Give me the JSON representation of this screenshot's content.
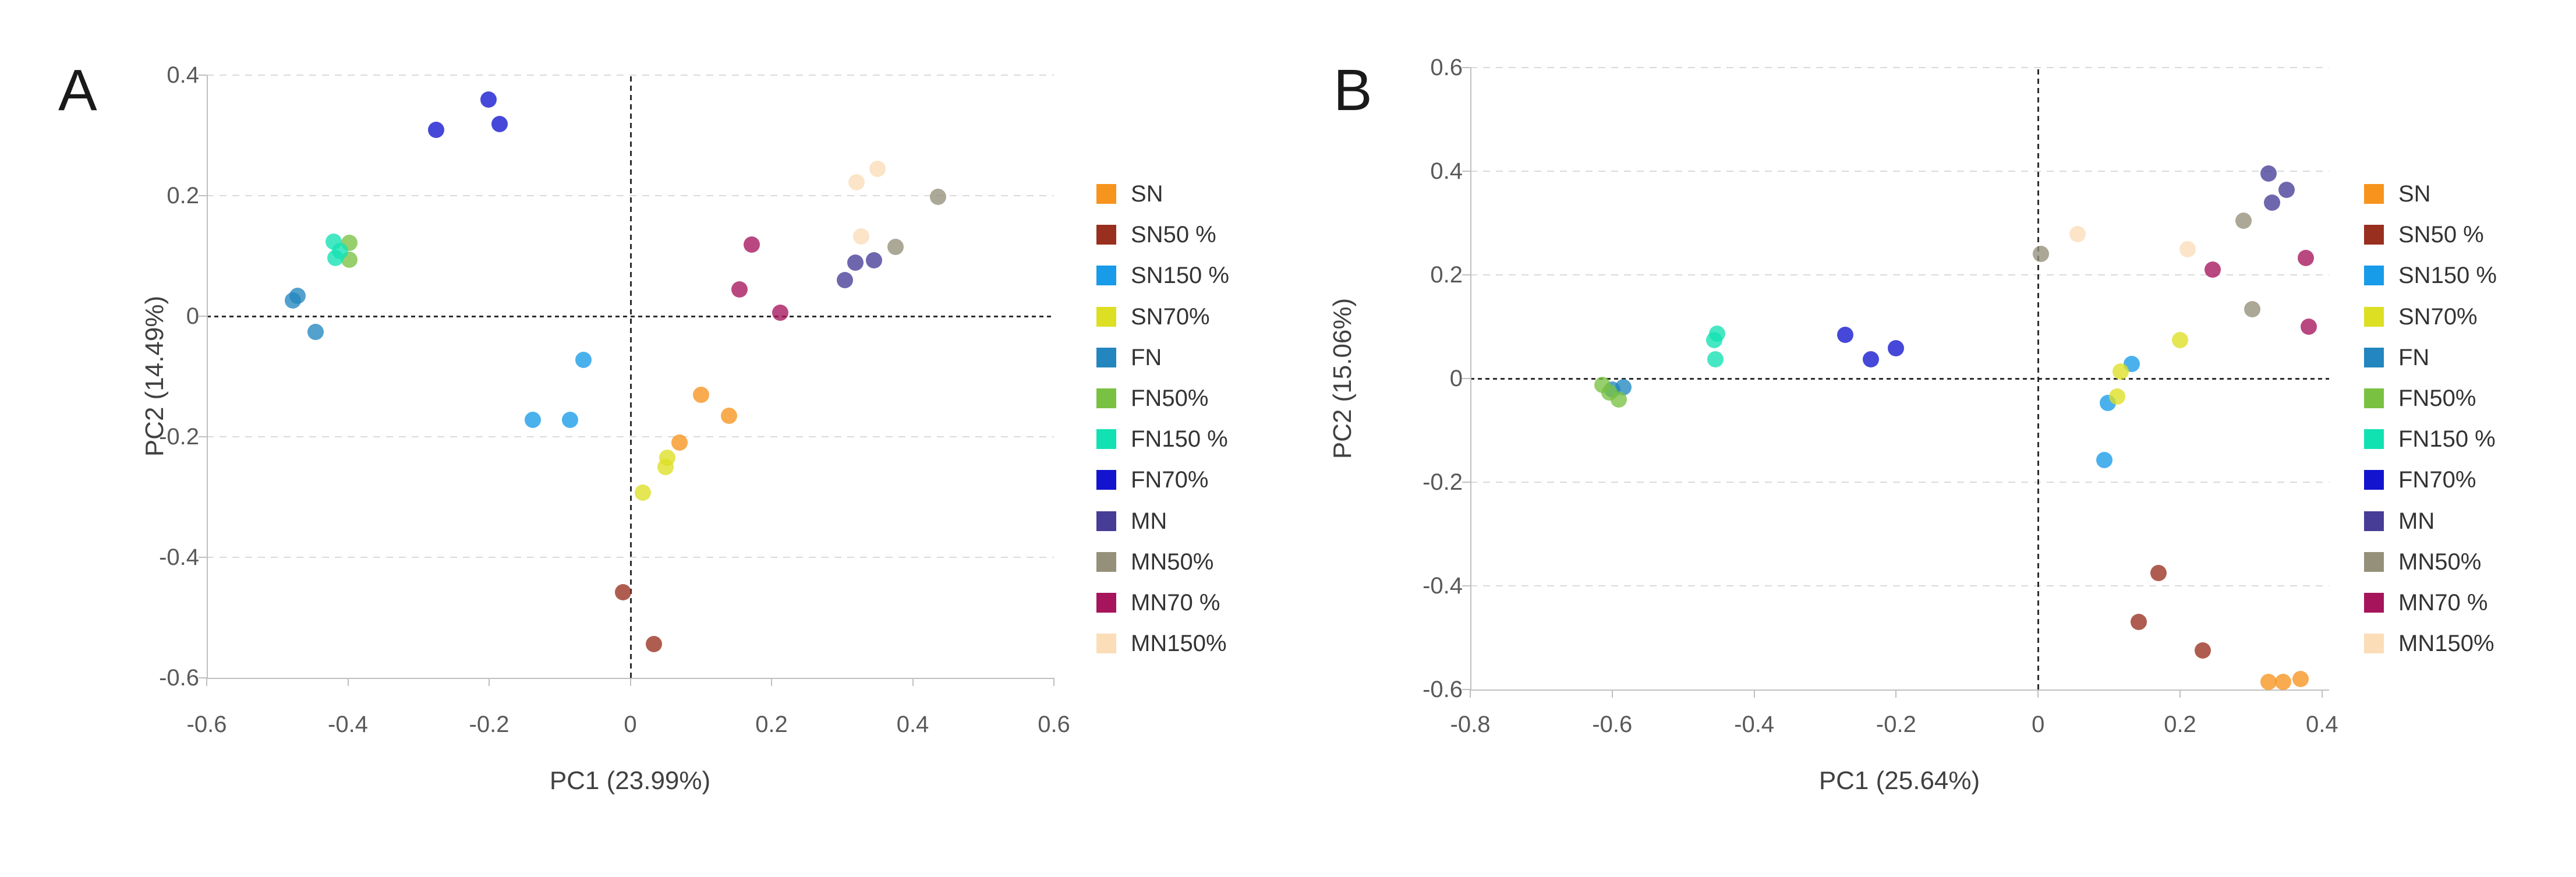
{
  "figure": {
    "panel_a_letter": "A",
    "panel_b_letter": "B"
  },
  "chart_data": [
    {
      "type": "scatter",
      "panel_label": "A",
      "xlabel": "PC1 (23.99%)",
      "ylabel": "PC2 (14.49%)",
      "xlim": [
        -0.6,
        0.6
      ],
      "ylim": [
        -0.6,
        0.4
      ],
      "x_ticks": [
        -0.6,
        -0.4,
        -0.2,
        0,
        0.2,
        0.4,
        0.6
      ],
      "x_tick_labels": [
        "-0.6",
        "-0.4",
        "-0.2",
        "0",
        "0.2",
        "0.4",
        "0.6"
      ],
      "y_ticks": [
        0.4,
        0.2,
        0,
        -0.2,
        -0.4,
        -0.6
      ],
      "y_tick_labels": [
        "0.4",
        "0.2",
        "0",
        "-0.2",
        "-0.4",
        "-0.6"
      ],
      "grid": "horizontal-dashed",
      "legend_position": "right",
      "series": [
        {
          "name": "SN",
          "color": "#F7941D",
          "points": [
            [
              0.1,
              -0.13
            ],
            [
              0.14,
              -0.165
            ],
            [
              0.07,
              -0.21
            ]
          ]
        },
        {
          "name": "SN50 %",
          "color": "#992F1F",
          "points": [
            [
              -0.01,
              -0.458
            ],
            [
              0.033,
              -0.544
            ]
          ]
        },
        {
          "name": "SN150 %",
          "color": "#189BE8",
          "points": [
            [
              -0.066,
              -0.072
            ],
            [
              -0.138,
              -0.172
            ],
            [
              -0.085,
              -0.172
            ]
          ]
        },
        {
          "name": "SN70%",
          "color": "#DCDF23",
          "points": [
            [
              0.052,
              -0.235
            ],
            [
              0.05,
              -0.25
            ],
            [
              0.018,
              -0.293
            ]
          ]
        },
        {
          "name": "FN",
          "color": "#2386BF",
          "points": [
            [
              -0.471,
              0.034
            ],
            [
              -0.478,
              0.026
            ],
            [
              -0.446,
              -0.026
            ]
          ]
        },
        {
          "name": "FN50%",
          "color": "#79C143",
          "points": [
            [
              -0.398,
              0.122
            ],
            [
              -0.398,
              0.094
            ]
          ]
        },
        {
          "name": "FN150 %",
          "color": "#12E1B2",
          "points": [
            [
              -0.42,
              0.124
            ],
            [
              -0.411,
              0.108
            ],
            [
              -0.418,
              0.097
            ]
          ]
        },
        {
          "name": "FN70%",
          "color": "#1214CE",
          "points": [
            [
              -0.275,
              0.309
            ],
            [
              -0.201,
              0.359
            ],
            [
              -0.185,
              0.319
            ]
          ]
        },
        {
          "name": "MN",
          "color": "#473C96",
          "points": [
            [
              0.304,
              0.06
            ],
            [
              0.319,
              0.089
            ],
            [
              0.345,
              0.093
            ]
          ]
        },
        {
          "name": "MN50%",
          "color": "#95907A",
          "points": [
            [
              0.376,
              0.115
            ],
            [
              0.436,
              0.198
            ]
          ]
        },
        {
          "name": "MN70 %",
          "color": "#A6145C",
          "points": [
            [
              0.172,
              0.119
            ],
            [
              0.155,
              0.044
            ],
            [
              0.212,
              0.006
            ]
          ]
        },
        {
          "name": "MN150%",
          "color": "#FBDDB8",
          "points": [
            [
              0.327,
              0.132
            ],
            [
              0.32,
              0.222
            ],
            [
              0.35,
              0.244
            ]
          ]
        }
      ]
    },
    {
      "type": "scatter",
      "panel_label": "B",
      "xlabel": "PC1 (25.64%)",
      "ylabel": "PC2 (15.06%)",
      "xlim": [
        -0.8,
        0.41
      ],
      "ylim": [
        -0.6,
        0.6
      ],
      "x_ticks": [
        -0.8,
        -0.6,
        -0.4,
        -0.2,
        0,
        0.2,
        0.4
      ],
      "x_tick_labels": [
        "-0.8",
        "-0.6",
        "-0.4",
        "-0.2",
        "0",
        "0.2",
        "0.4"
      ],
      "y_ticks": [
        0.6,
        0.4,
        0.2,
        0,
        -0.2,
        -0.4,
        -0.6
      ],
      "y_tick_labels": [
        "0.6",
        "0.4",
        "0.2",
        "0",
        "-0.2",
        "-0.4",
        "-0.6"
      ],
      "grid": "horizontal-dashed",
      "legend_position": "right",
      "series": [
        {
          "name": "SN",
          "color": "#F7941D",
          "points": [
            [
              0.325,
              -0.585
            ],
            [
              0.345,
              -0.585
            ],
            [
              0.37,
              -0.58
            ]
          ]
        },
        {
          "name": "SN50 %",
          "color": "#992F1F",
          "points": [
            [
              0.17,
              -0.375
            ],
            [
              0.142,
              -0.47
            ],
            [
              0.232,
              -0.525
            ]
          ]
        },
        {
          "name": "SN150 %",
          "color": "#189BE8",
          "points": [
            [
              0.132,
              0.028
            ],
            [
              0.098,
              -0.047
            ],
            [
              0.093,
              -0.157
            ]
          ]
        },
        {
          "name": "SN70%",
          "color": "#DCDF23",
          "points": [
            [
              0.2,
              0.074
            ],
            [
              0.116,
              0.013
            ],
            [
              0.111,
              -0.035
            ]
          ]
        },
        {
          "name": "FN",
          "color": "#2386BF",
          "points": [
            [
              -0.584,
              -0.017
            ],
            [
              -0.6,
              -0.021
            ]
          ]
        },
        {
          "name": "FN50%",
          "color": "#79C143",
          "points": [
            [
              -0.614,
              -0.012
            ],
            [
              -0.604,
              -0.027
            ],
            [
              -0.591,
              -0.04
            ]
          ]
        },
        {
          "name": "FN150 %",
          "color": "#12E1B2",
          "points": [
            [
              -0.452,
              0.086
            ],
            [
              -0.456,
              0.074
            ],
            [
              -0.455,
              0.037
            ]
          ]
        },
        {
          "name": "FN70%",
          "color": "#1214CE",
          "points": [
            [
              -0.272,
              0.084
            ],
            [
              -0.2,
              0.058
            ],
            [
              -0.236,
              0.037
            ]
          ]
        },
        {
          "name": "MN",
          "color": "#473C96",
          "points": [
            [
              0.325,
              0.395
            ],
            [
              0.35,
              0.364
            ],
            [
              0.33,
              0.339
            ]
          ]
        },
        {
          "name": "MN50%",
          "color": "#95907A",
          "points": [
            [
              0.004,
              0.24
            ],
            [
              0.289,
              0.304
            ],
            [
              0.302,
              0.134
            ]
          ]
        },
        {
          "name": "MN70 %",
          "color": "#A6145C",
          "points": [
            [
              0.246,
              0.21
            ],
            [
              0.377,
              0.233
            ],
            [
              0.381,
              0.1
            ]
          ]
        },
        {
          "name": "MN150%",
          "color": "#FBDDB8",
          "points": [
            [
              0.056,
              0.279
            ],
            [
              0.211,
              0.25
            ]
          ]
        }
      ]
    }
  ]
}
